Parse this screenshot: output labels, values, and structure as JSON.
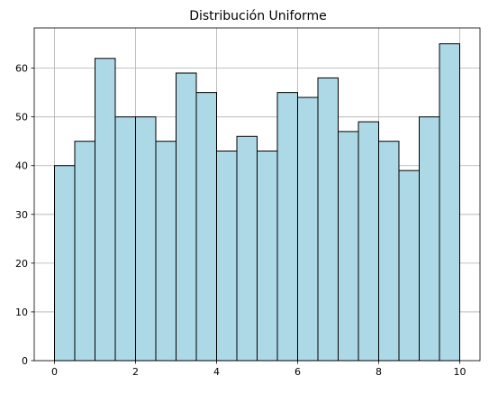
{
  "chart_data": {
    "type": "bar",
    "title": "Distribución Uniforme",
    "xlabel": "",
    "ylabel": "",
    "bin_edges": [
      0,
      0.5,
      1,
      1.5,
      2,
      2.5,
      3,
      3.5,
      4,
      4.5,
      5,
      5.5,
      6,
      6.5,
      7,
      7.5,
      8,
      8.5,
      9,
      9.5,
      10
    ],
    "values": [
      40,
      45,
      62,
      50,
      50,
      45,
      59,
      55,
      43,
      46,
      43,
      55,
      54,
      58,
      47,
      49,
      45,
      39,
      50,
      65
    ],
    "xlim": [
      -0.5,
      10.5
    ],
    "ylim": [
      0,
      68.25
    ],
    "xticks": [
      0,
      2,
      4,
      6,
      8,
      10
    ],
    "xtick_labels": [
      "0",
      "2",
      "4",
      "6",
      "8",
      "10"
    ],
    "yticks": [
      0,
      10,
      20,
      30,
      40,
      50,
      60
    ],
    "ytick_labels": [
      "0",
      "10",
      "20",
      "30",
      "40",
      "50",
      "60"
    ],
    "grid": true,
    "legend": "none",
    "bar_color": "#add8e6",
    "edge_color": "#000000",
    "grid_color": "#b0b0b0"
  }
}
